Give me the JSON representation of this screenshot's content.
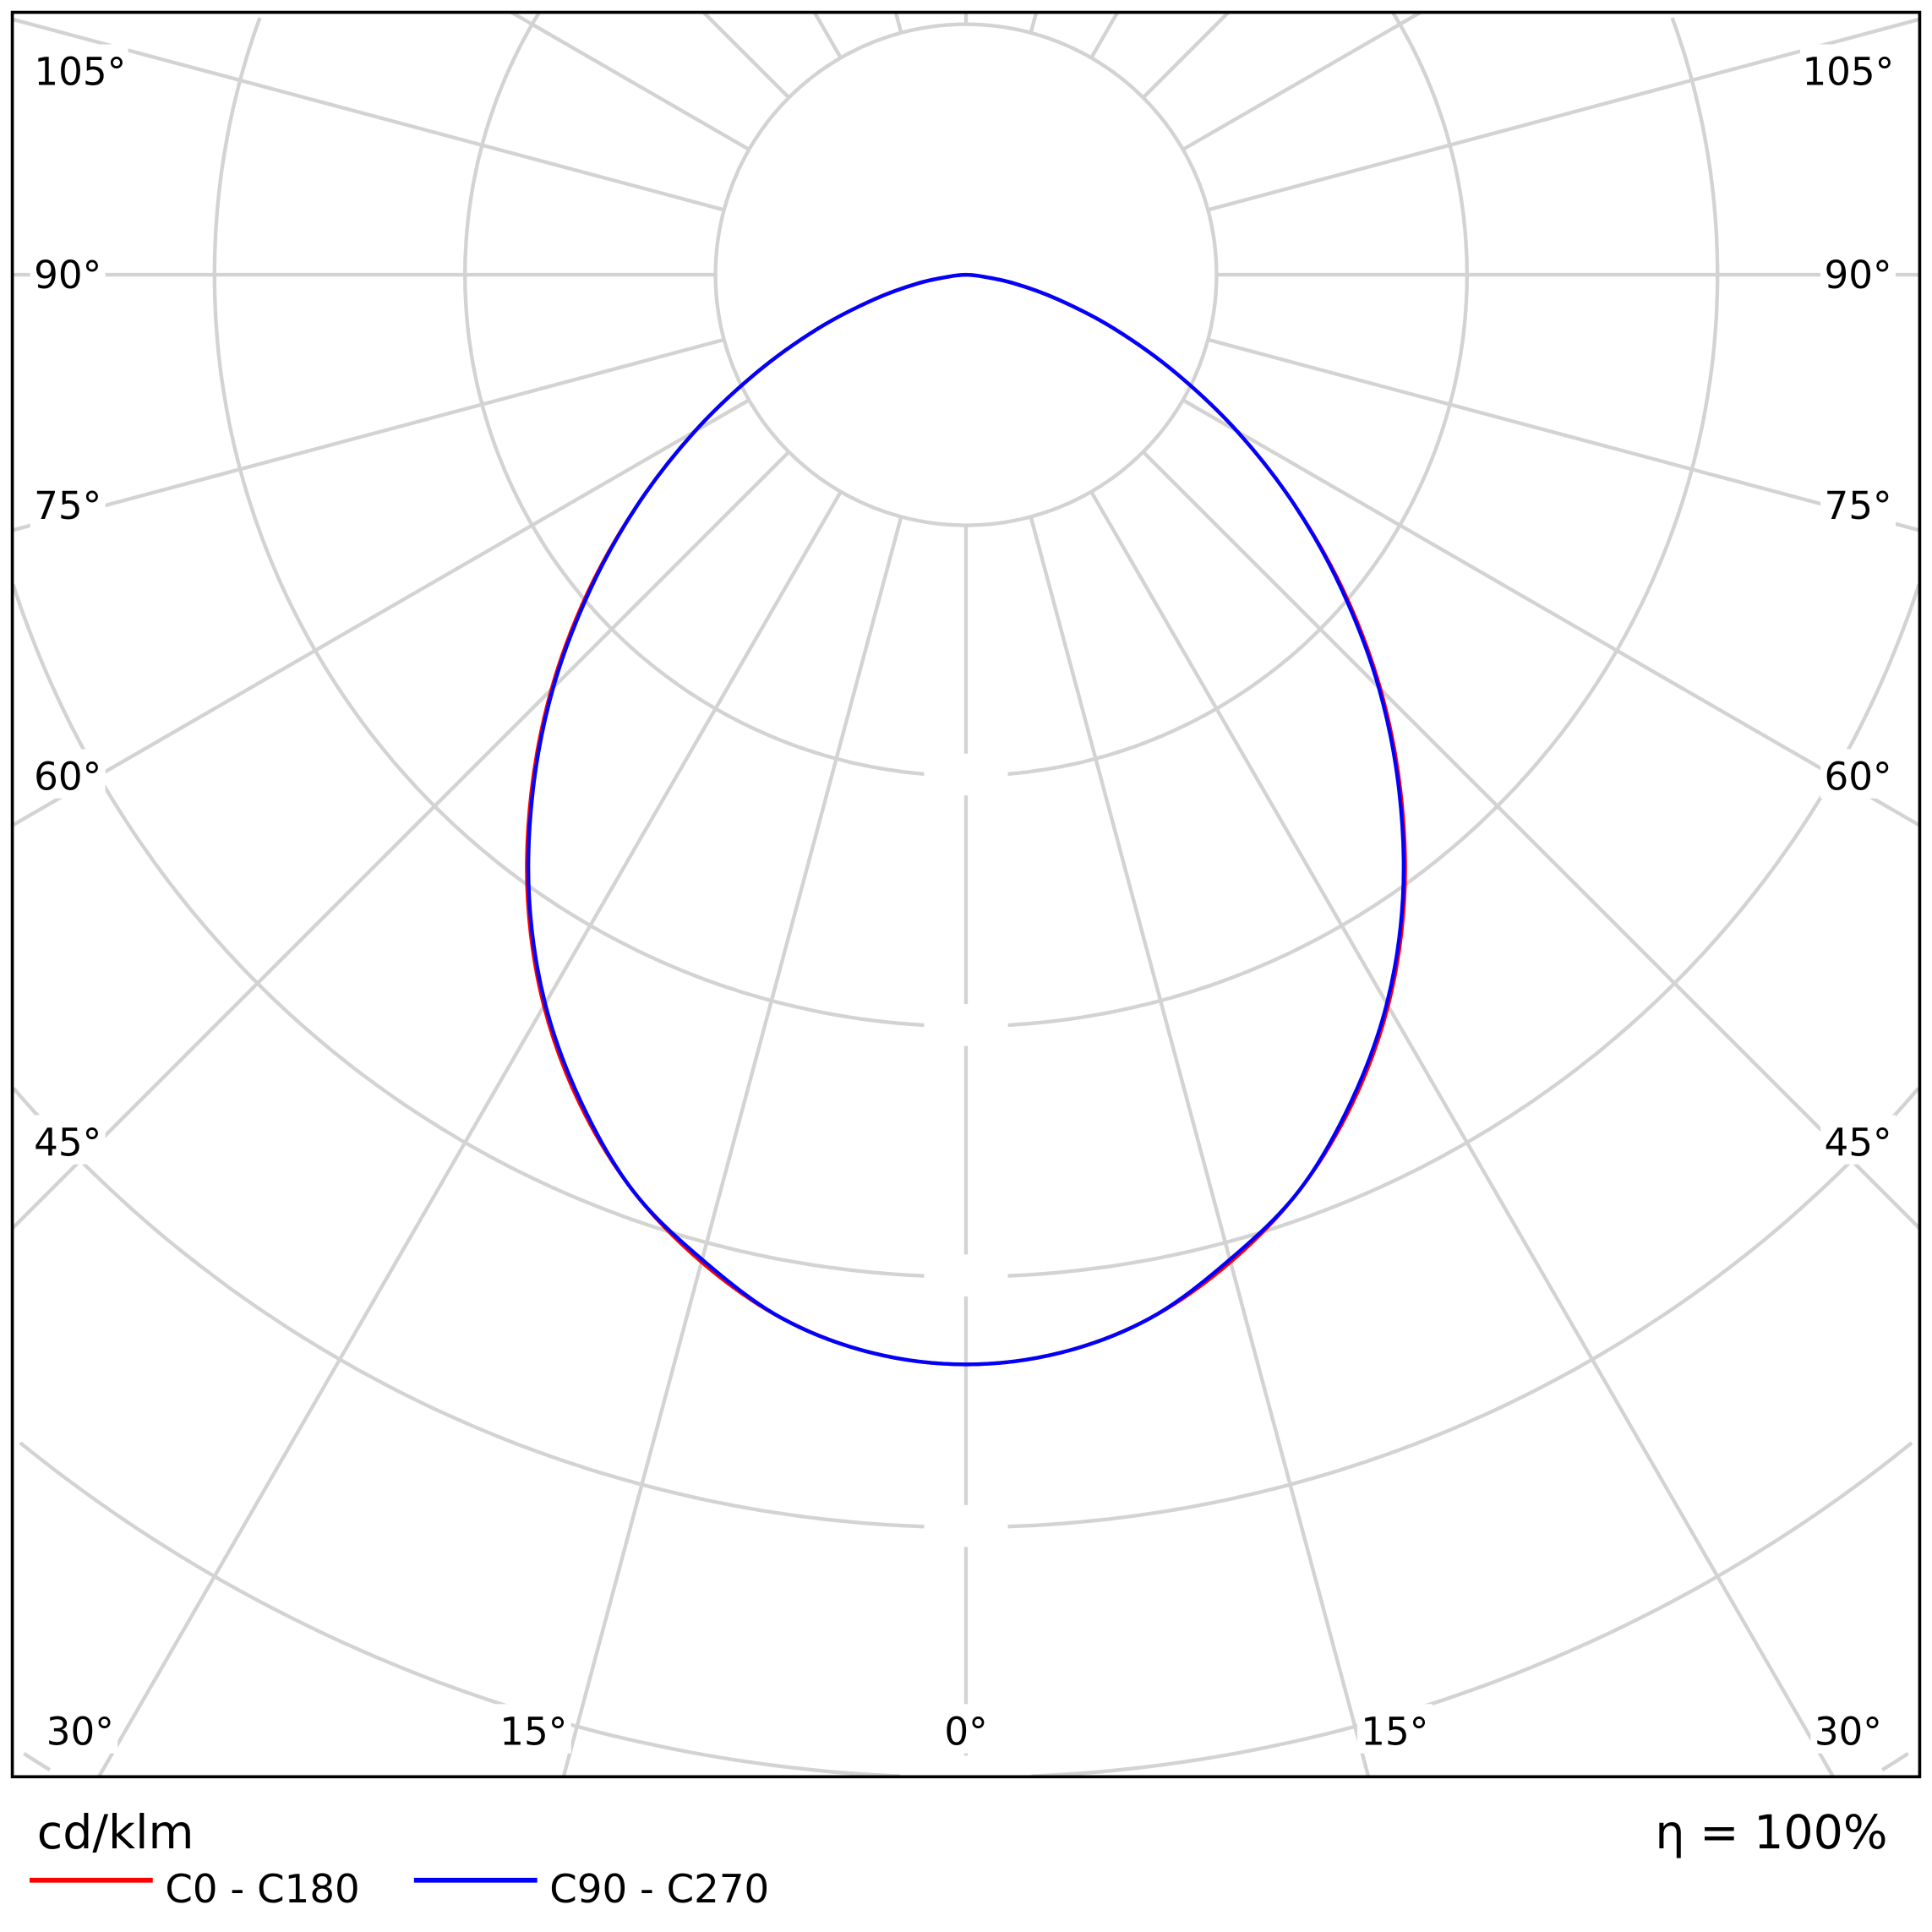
{
  "chart_data": {
    "type": "polar-line",
    "unit_label": "cd/klm",
    "efficiency_label": "η = 100%",
    "angle_labels": {
      "left": [
        "105°",
        "90°",
        "75°",
        "60°",
        "45°",
        "30°",
        "15°"
      ],
      "bottom_center": "0°",
      "right": [
        "15°",
        "30°",
        "45°",
        "60°",
        "75°",
        "90°",
        "105°"
      ]
    },
    "angles_deg": [
      0,
      5,
      10,
      15,
      20,
      25,
      30,
      35,
      40,
      45,
      50,
      55,
      60,
      65,
      70,
      75,
      80,
      85,
      90
    ],
    "intensity_note_unit": "grid ring steps",
    "series": [
      {
        "name": "C0 - C180",
        "color": "#ff0000",
        "values": [
          4.35,
          4.32,
          4.23,
          4.08,
          3.89,
          3.65,
          3.37,
          3.05,
          2.7,
          2.34,
          1.97,
          1.6,
          1.25,
          0.92,
          0.63,
          0.38,
          0.19,
          0.05,
          0
        ]
      },
      {
        "name": "C90 - C270",
        "color": "#0000ff",
        "values": [
          4.35,
          4.32,
          4.23,
          4.07,
          3.89,
          3.64,
          3.36,
          3.04,
          2.69,
          2.33,
          1.96,
          1.6,
          1.25,
          0.92,
          0.63,
          0.38,
          0.19,
          0.05,
          0
        ]
      }
    ],
    "grid": true,
    "legend": "bottom-left"
  }
}
